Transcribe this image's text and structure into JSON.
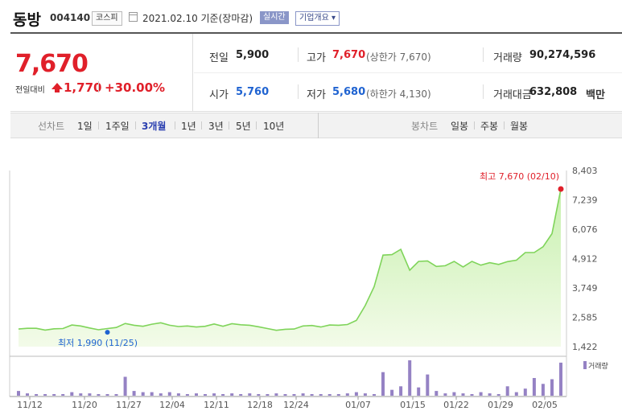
{
  "header": {
    "name": "동방",
    "code": "004140",
    "market": "코스피",
    "date": "2021.02.10 기준(장마감)",
    "realtime": "실시간",
    "company_info": "기업개요 ▾"
  },
  "summary": {
    "price": "7,670",
    "change_label": "전일대비",
    "change_value": "1,770",
    "change_pct": "+30.00%",
    "prev_close_label": "전일",
    "prev_close": "5,900",
    "high_label": "고가",
    "high": "7,670",
    "upper_limit": "(상한가 7,670)",
    "volume_label": "거래량",
    "volume": "90,274,596",
    "open_label": "시가",
    "open": "5,760",
    "low_label": "저가",
    "low": "5,680",
    "lower_limit": "(하한가 4,130)",
    "amount_label": "거래대금",
    "amount": "632,808",
    "amount_unit": "백만"
  },
  "period": {
    "label": "선차트",
    "options": [
      "1일",
      "1주일",
      "3개월",
      "1년",
      "3년",
      "5년",
      "10년"
    ],
    "selected": "3개월",
    "candle_label": "봉차트",
    "candle_options": [
      "일봉",
      "주봉",
      "월봉"
    ]
  },
  "colors": {
    "up": "#e0202a",
    "down": "#1f63d1",
    "line": "#7fd45a",
    "fill": "#c7f0ae",
    "volume": "#9582c4"
  },
  "chart_data": {
    "type": "area",
    "x_ticks": [
      "11/12",
      "11/20",
      "11/27",
      "12/04",
      "12/11",
      "12/18",
      "12/24",
      "01/07",
      "01/15",
      "01/22",
      "01/29",
      "02/05"
    ],
    "y_ticks": [
      "8,403",
      "7,239",
      "6,076",
      "4,912",
      "3,749",
      "2,585",
      "1,422"
    ],
    "ylim": [
      1422,
      8403
    ],
    "max_label": "최고 7,670 (02/10)",
    "min_label": "최저 1,990 (11/25)",
    "max_value": 7670,
    "min_value": 1990,
    "volume_label": "거래량",
    "series": [
      {
        "values": [
          2120,
          2150,
          2150,
          2080,
          2130,
          2140,
          2280,
          2240,
          2160,
          2090,
          2140,
          2180,
          2340,
          2270,
          2230,
          2310,
          2370,
          2270,
          2220,
          2240,
          2200,
          2230,
          2320,
          2230,
          2330,
          2290,
          2270,
          2210,
          2140,
          2070,
          2110,
          2120,
          2240,
          2260,
          2200,
          2280,
          2270,
          2300,
          2460,
          3050,
          3800,
          5050,
          5070,
          5280,
          4450,
          4800,
          4820,
          4600,
          4630,
          4800,
          4580,
          4800,
          4650,
          4750,
          4680,
          4790,
          4850,
          5150,
          5150,
          5380,
          5900,
          7670
        ]
      }
    ],
    "volume": [
      4,
      2,
      1,
      1,
      1,
      1,
      3,
      2,
      2,
      1,
      1,
      1,
      16,
      4,
      3,
      3,
      2,
      3,
      2,
      1,
      2,
      1,
      2,
      1,
      2,
      1,
      2,
      1,
      1,
      2,
      1,
      1,
      2,
      1,
      1,
      1,
      1,
      2,
      3,
      2,
      1,
      20,
      5,
      8,
      30,
      7,
      18,
      4,
      2,
      3,
      2,
      1,
      3,
      2,
      1,
      8,
      3,
      6,
      15,
      10,
      14,
      28
    ]
  }
}
